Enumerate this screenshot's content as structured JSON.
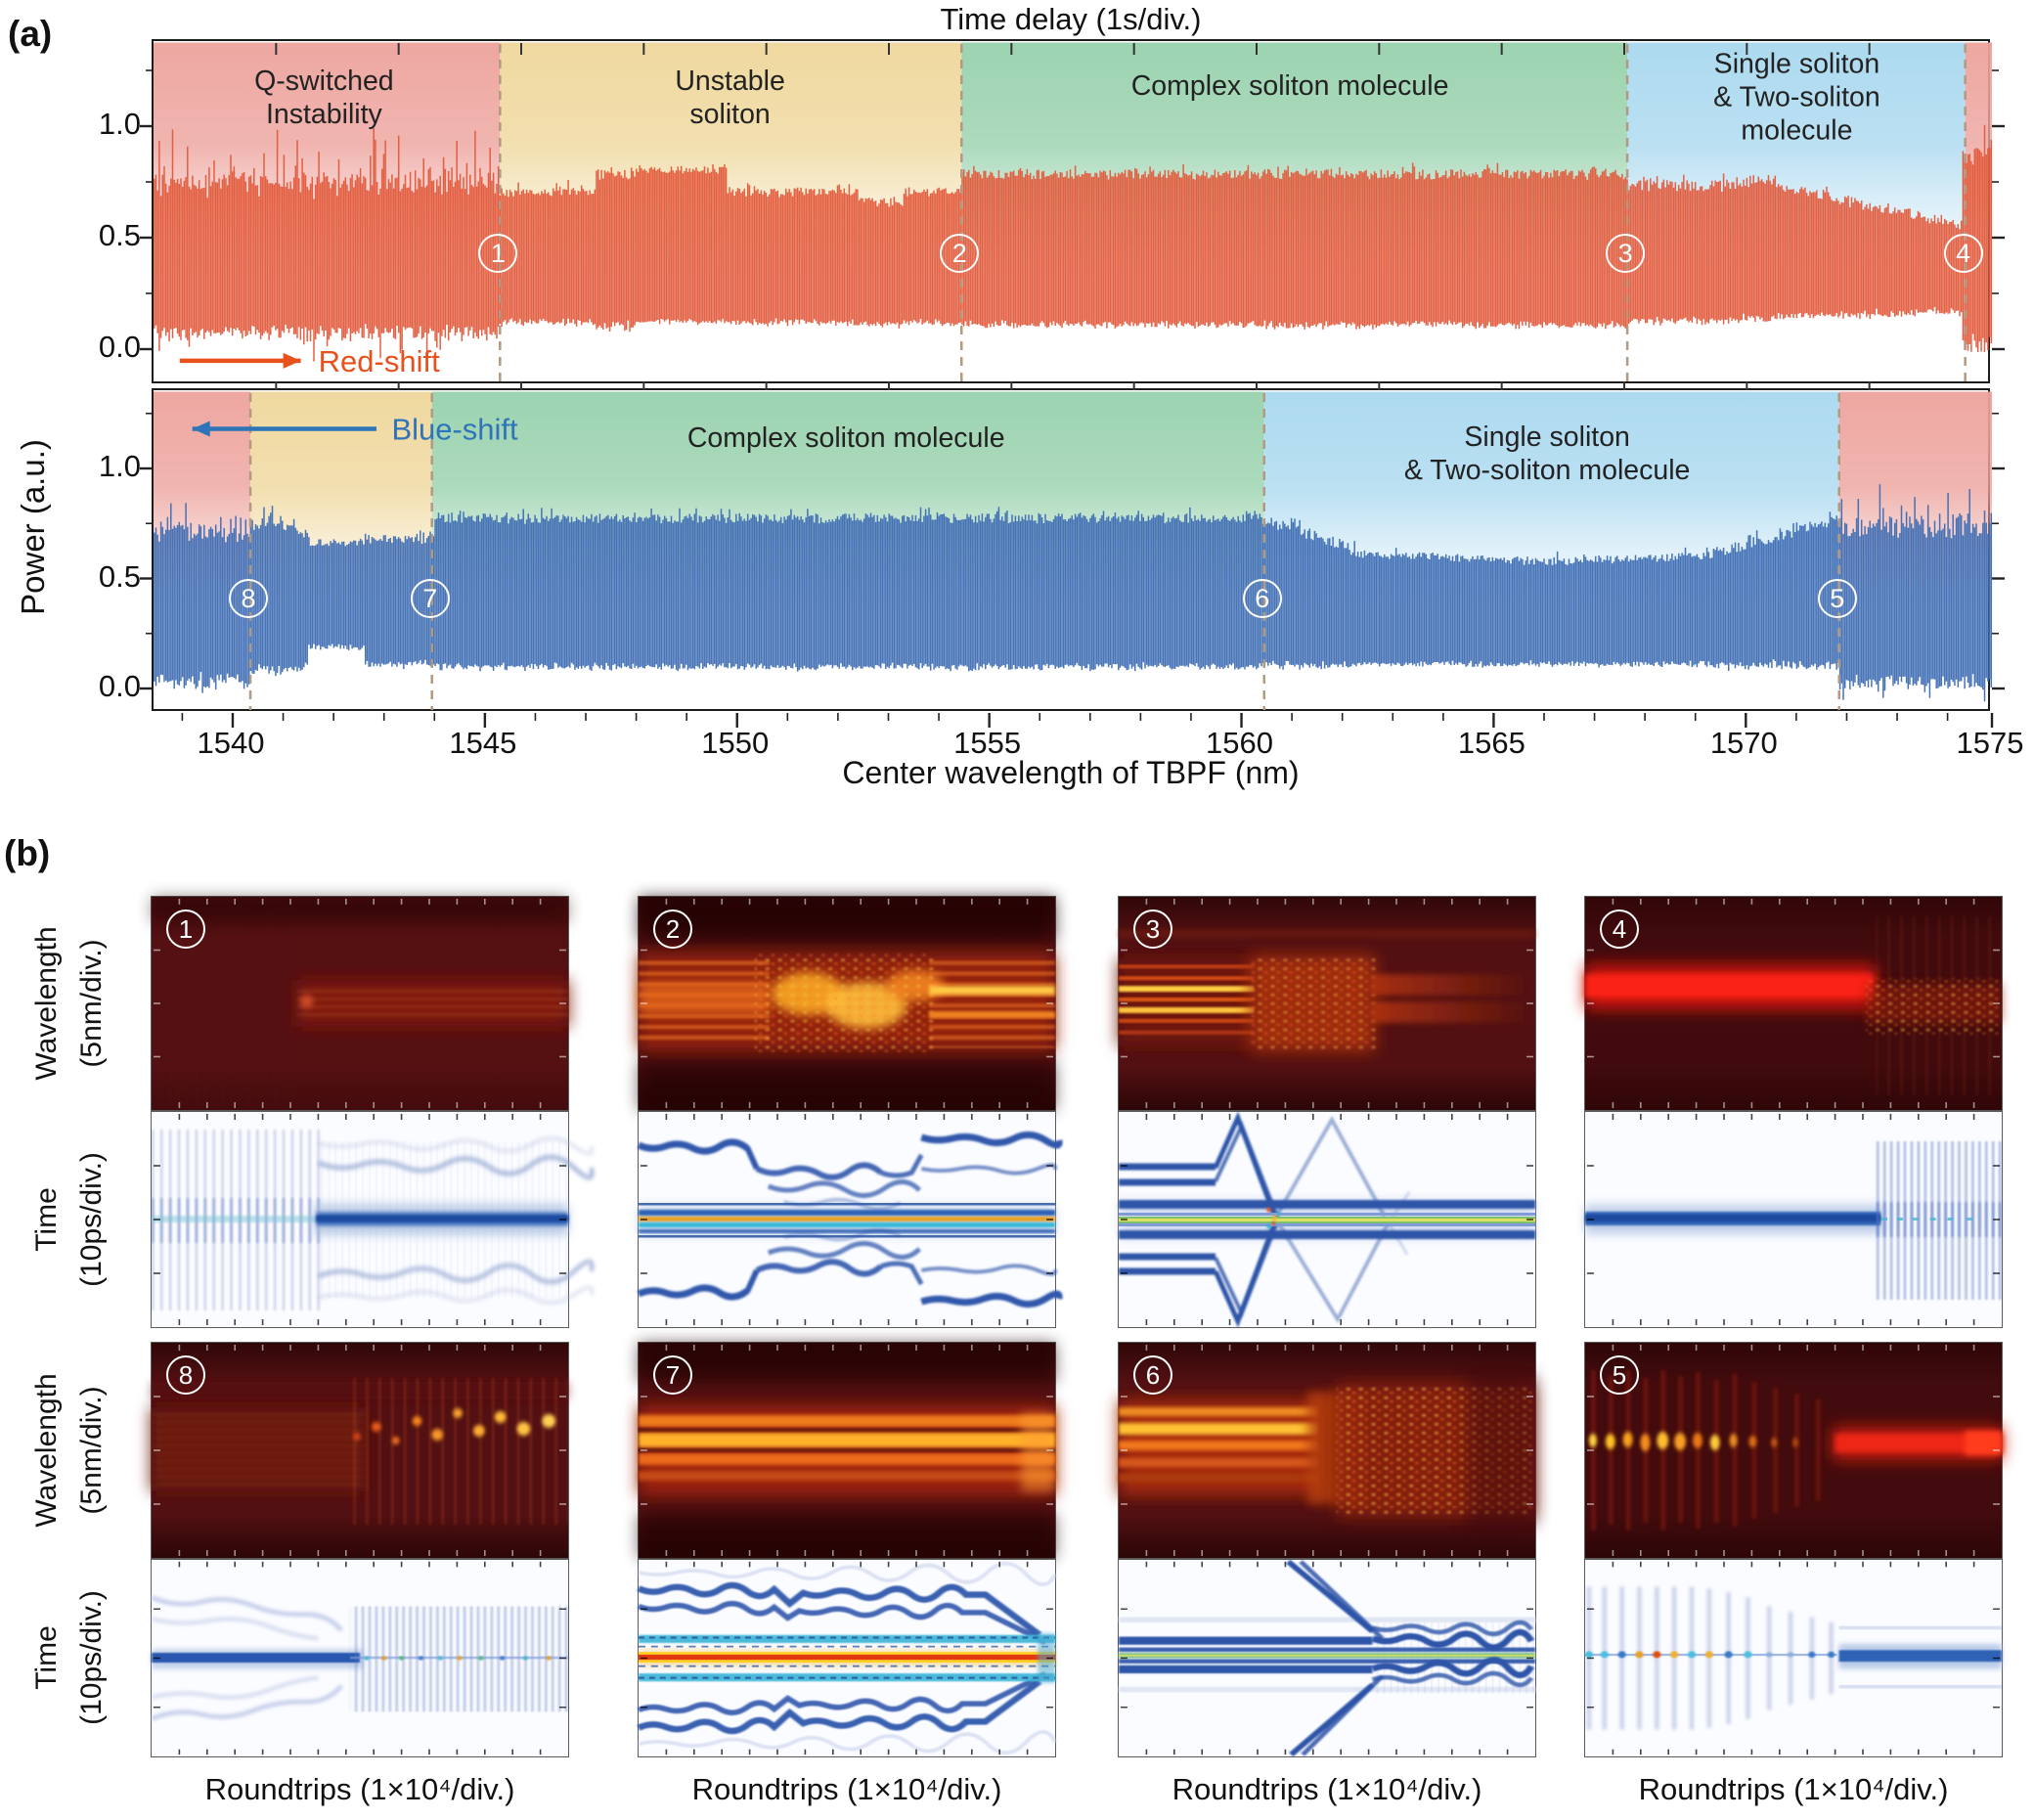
{
  "figure": {
    "panel_a_label": "(a)",
    "panel_b_label": "(b)",
    "top_axis_title": "Time delay (1s/div.)",
    "bottom_axis_title": "Center wavelength of TBPF (nm)",
    "left_axis_title": "Power (a.u.)"
  },
  "x_tick_labels": [
    {
      "x": 1540,
      "label": "1540"
    },
    {
      "x": 1545,
      "label": "1545"
    },
    {
      "x": 1550,
      "label": "1550"
    },
    {
      "x": 1555,
      "label": "1555"
    },
    {
      "x": 1560,
      "label": "1560"
    },
    {
      "x": 1565,
      "label": "1565"
    },
    {
      "x": 1570,
      "label": "1570"
    },
    {
      "x": 1575,
      "label": "1575"
    }
  ],
  "chart_data": [
    {
      "id": "top",
      "type": "area",
      "trace_color": "#e2583a",
      "x_range": [
        1538.43,
        1574.88
      ],
      "xlabel": "Center wavelength of TBPF (nm)",
      "ylabel": "Power (a.u.)",
      "y_ticks": [
        {
          "v": 1.0,
          "label": "1.0"
        },
        {
          "v": 0.5,
          "label": "0.5"
        },
        {
          "v": 0.0,
          "label": "0.0"
        }
      ],
      "time_divisions": 15,
      "regions": [
        {
          "x0": 1538.43,
          "x1": 1545.3,
          "color": "#eda29c",
          "label": "Q-switched\nInstability",
          "label_x": 1541.85,
          "label_v": 1.12
        },
        {
          "x0": 1545.3,
          "x1": 1554.45,
          "color": "#efd79b",
          "label": "Unstable\nsoliton",
          "label_x": 1549.9,
          "label_v": 1.12
        },
        {
          "x0": 1554.45,
          "x1": 1567.65,
          "color": "#97d1ac",
          "label": "Complex soliton molecule",
          "label_x": 1561.0,
          "label_v": 1.17
        },
        {
          "x0": 1567.65,
          "x1": 1574.35,
          "color": "#a9d8ef",
          "label": "Single soliton\n& Two-soliton molecule",
          "label_x": 1571.05,
          "label_v": 1.12
        },
        {
          "x0": 1574.35,
          "x1": 1574.88,
          "color": "#eda29c",
          "label": "",
          "label_x": 0,
          "label_v": 0
        }
      ],
      "markers": [
        {
          "glyph": "1",
          "x": 1545.3,
          "v": 0.42
        },
        {
          "glyph": "2",
          "x": 1554.45,
          "v": 0.42
        },
        {
          "glyph": "3",
          "x": 1567.65,
          "v": 0.42
        },
        {
          "glyph": "4",
          "x": 1574.35,
          "v": 0.42
        }
      ],
      "legend": {
        "text": "Red-shift",
        "color": "#e8511c",
        "direction": "right",
        "x0": 1538.95,
        "x1": 1541.35,
        "text_x": 1541.7,
        "v": -0.052
      },
      "envelope": [
        [
          1538.43,
          1545.3,
          0.72,
          0.72,
          0.1,
          0.1,
          0.05,
          0.26
        ],
        [
          1545.3,
          1547.2,
          0.7,
          0.7,
          0.13,
          0.13,
          0.02,
          0.05
        ],
        [
          1547.2,
          1548.0,
          0.78,
          0.78,
          0.12,
          0.12,
          0.03,
          0.09
        ],
        [
          1548.0,
          1549.8,
          0.8,
          0.8,
          0.13,
          0.13,
          0.015,
          0.03
        ],
        [
          1549.8,
          1552.4,
          0.7,
          0.7,
          0.13,
          0.13,
          0.02,
          0.04
        ],
        [
          1552.4,
          1553.3,
          0.655,
          0.655,
          0.12,
          0.12,
          0.02,
          0.04
        ],
        [
          1553.3,
          1554.45,
          0.7,
          0.7,
          0.13,
          0.13,
          0.02,
          0.04
        ],
        [
          1554.45,
          1567.65,
          0.78,
          0.78,
          0.12,
          0.12,
          0.022,
          0.035
        ],
        [
          1567.65,
          1569.8,
          0.73,
          0.73,
          0.14,
          0.14,
          0.025,
          0.05
        ],
        [
          1569.8,
          1570.6,
          0.74,
          0.76,
          0.15,
          0.15,
          0.025,
          0.04
        ],
        [
          1570.6,
          1574.3,
          0.73,
          0.55,
          0.16,
          0.18,
          0.025,
          0.035
        ],
        [
          1574.3,
          1574.88,
          0.86,
          0.88,
          0.05,
          0.05,
          0.05,
          0.12
        ]
      ]
    },
    {
      "id": "bottom",
      "type": "area",
      "trace_color": "#3d6bb3",
      "x_range": [
        1538.43,
        1574.88
      ],
      "xlabel": "Center wavelength of TBPF (nm)",
      "ylabel": "Power (a.u.)",
      "y_ticks": [
        {
          "v": 1.0,
          "label": "1.0"
        },
        {
          "v": 0.5,
          "label": "0.5"
        },
        {
          "v": 0.0,
          "label": "0.0"
        }
      ],
      "time_divisions": 15,
      "regions": [
        {
          "x0": 1538.43,
          "x1": 1540.35,
          "color": "#eda29c",
          "label": "",
          "label_x": 0,
          "label_v": 0
        },
        {
          "x0": 1540.35,
          "x1": 1543.95,
          "color": "#efd79b",
          "label": "",
          "label_x": 0,
          "label_v": 0
        },
        {
          "x0": 1543.95,
          "x1": 1560.45,
          "color": "#97d1ac",
          "label": "Complex soliton molecule",
          "label_x": 1552.2,
          "label_v": 1.13
        },
        {
          "x0": 1560.45,
          "x1": 1571.85,
          "color": "#a9d8ef",
          "label": "Single soliton\n& Two-soliton molecule",
          "label_x": 1566.1,
          "label_v": 1.06
        },
        {
          "x0": 1571.85,
          "x1": 1574.88,
          "color": "#eda29c",
          "label": "",
          "label_x": 0,
          "label_v": 0
        }
      ],
      "markers": [
        {
          "glyph": "8",
          "x": 1540.35,
          "v": 0.4
        },
        {
          "glyph": "7",
          "x": 1543.95,
          "v": 0.4
        },
        {
          "glyph": "6",
          "x": 1560.45,
          "v": 0.4
        },
        {
          "glyph": "5",
          "x": 1571.85,
          "v": 0.4
        }
      ],
      "legend": {
        "text": "Blue-shift",
        "color": "#2e74b8",
        "direction": "left",
        "x0": 1539.2,
        "x1": 1542.85,
        "text_x": 1543.15,
        "v": 1.18
      },
      "envelope": [
        [
          1538.43,
          1540.35,
          0.7,
          0.7,
          0.06,
          0.06,
          0.05,
          0.22
        ],
        [
          1540.35,
          1541.0,
          0.74,
          0.77,
          0.1,
          0.1,
          0.03,
          0.07
        ],
        [
          1541.0,
          1541.5,
          0.73,
          0.69,
          0.11,
          0.11,
          0.025,
          0.05
        ],
        [
          1541.5,
          1542.6,
          0.66,
          0.66,
          0.2,
          0.2,
          0.02,
          0.04
        ],
        [
          1542.6,
          1544.0,
          0.675,
          0.675,
          0.12,
          0.12,
          0.02,
          0.05
        ],
        [
          1544.0,
          1560.4,
          0.77,
          0.77,
          0.11,
          0.11,
          0.022,
          0.04
        ],
        [
          1560.4,
          1562.3,
          0.77,
          0.62,
          0.12,
          0.12,
          0.025,
          0.04
        ],
        [
          1562.3,
          1566.0,
          0.61,
          0.575,
          0.12,
          0.12,
          0.018,
          0.03
        ],
        [
          1566.0,
          1569.3,
          0.575,
          0.6,
          0.12,
          0.12,
          0.018,
          0.03
        ],
        [
          1569.3,
          1571.85,
          0.6,
          0.76,
          0.12,
          0.12,
          0.025,
          0.06
        ],
        [
          1571.85,
          1574.88,
          0.72,
          0.72,
          0.05,
          0.05,
          0.05,
          0.2
        ]
      ]
    }
  ],
  "panel_b": {
    "wavelength_label_line1": "Wavelength",
    "wavelength_label_line2": "(5nm/div.)",
    "time_label_line1": "Time",
    "time_label_line2": "(10ps/div.)",
    "x_label": "Roundtrips (1×10⁴/div.)",
    "numbers_row1": [
      "1",
      "2",
      "3",
      "4"
    ],
    "numbers_row2": [
      "8",
      "7",
      "6",
      "5"
    ]
  }
}
